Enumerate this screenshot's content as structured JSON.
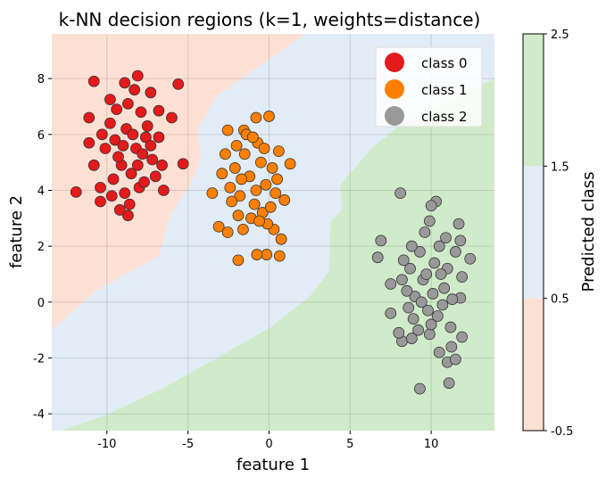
{
  "chart_data": {
    "type": "scatter",
    "title": "k-NN decision regions (k=1, weights=distance)",
    "xlabel": "feature 1",
    "ylabel": "feature 2",
    "xlim": [
      -13.4,
      13.9
    ],
    "ylim": [
      -4.6,
      9.6
    ],
    "xticks": [
      -10,
      -5,
      0,
      5,
      10
    ],
    "yticks": [
      -4,
      -2,
      0,
      2,
      4,
      6,
      8
    ],
    "grid": true,
    "legend_placement": "top-right",
    "regions": {
      "colors": [
        "#fde0d4",
        "#e2ecf7",
        "#d0ebc9"
      ],
      "boundary_0_1": [
        [
          2.27,
          9.6
        ],
        [
          -3.2,
          7.4
        ],
        [
          -4.4,
          6.2
        ],
        [
          -4.2,
          5.1
        ],
        [
          -4.9,
          4.2
        ],
        [
          -6.1,
          3.1
        ],
        [
          -6.8,
          1.65
        ],
        [
          -10.6,
          0.44
        ],
        [
          -13.4,
          -1.0
        ]
      ],
      "boundary_1_2": [
        [
          13.9,
          8.0
        ],
        [
          8.25,
          6.4
        ],
        [
          6.3,
          5.5
        ],
        [
          4.4,
          4.2
        ],
        [
          4.5,
          3.3
        ],
        [
          3.8,
          2.9
        ],
        [
          3.7,
          1.1
        ],
        [
          2.5,
          0.2
        ],
        [
          0.1,
          -0.9
        ],
        [
          -3.2,
          -2.0
        ],
        [
          -6.6,
          -3.1
        ],
        [
          -9.9,
          -4.0
        ],
        [
          -12.8,
          -4.6
        ]
      ]
    },
    "series": [
      {
        "name": "class 0",
        "color": "#e41a1c",
        "points": [
          [
            -11.9,
            3.94
          ],
          [
            -10.8,
            7.9
          ],
          [
            -8.1,
            8.1
          ],
          [
            -5.6,
            7.8
          ],
          [
            -5.3,
            4.95
          ],
          [
            -8.9,
            7.85
          ],
          [
            -11.1,
            6.6
          ],
          [
            -11.1,
            5.7
          ],
          [
            -10.8,
            4.9
          ],
          [
            -10.4,
            3.6
          ],
          [
            -8.7,
            3.1
          ],
          [
            -6.5,
            4.0
          ],
          [
            -6.0,
            6.6
          ],
          [
            -7.3,
            7.5
          ],
          [
            -9.8,
            7.25
          ],
          [
            -6.8,
            6.85
          ],
          [
            -9.5,
            5.8
          ],
          [
            -8.8,
            6.2
          ],
          [
            -8.2,
            5.5
          ],
          [
            -9.1,
            4.9
          ],
          [
            -7.6,
            5.9
          ],
          [
            -8.5,
            4.6
          ],
          [
            -9.8,
            6.4
          ],
          [
            -7.9,
            6.8
          ],
          [
            -8.7,
            7.1
          ],
          [
            -9.3,
            5.2
          ],
          [
            -7.2,
            5.1
          ],
          [
            -7.0,
            4.5
          ],
          [
            -10.1,
            5.5
          ],
          [
            -8.0,
            4.1
          ],
          [
            -8.9,
            3.9
          ],
          [
            -9.6,
            4.4
          ],
          [
            -7.5,
            6.3
          ],
          [
            -8.4,
            6.0
          ],
          [
            -9.0,
            5.6
          ],
          [
            -7.8,
            5.3
          ],
          [
            -8.6,
            3.5
          ],
          [
            -9.2,
            3.3
          ],
          [
            -10.3,
            6.0
          ],
          [
            -7.3,
            5.6
          ],
          [
            -6.8,
            5.9
          ],
          [
            -6.6,
            4.9
          ],
          [
            -8.3,
            7.6
          ],
          [
            -9.4,
            6.9
          ],
          [
            -10.4,
            4.1
          ],
          [
            -8.1,
            4.9
          ],
          [
            -7.7,
            4.3
          ],
          [
            -9.7,
            3.8
          ]
        ]
      },
      {
        "name": "class 1",
        "color": "#ff7f00",
        "points": [
          [
            -0.8,
            6.6
          ],
          [
            0.0,
            6.65
          ],
          [
            1.3,
            4.95
          ],
          [
            0.95,
            3.65
          ],
          [
            0.75,
            2.25
          ],
          [
            0.65,
            1.65
          ],
          [
            -0.15,
            1.7
          ],
          [
            -0.75,
            1.7
          ],
          [
            -1.9,
            1.5
          ],
          [
            -2.55,
            2.5
          ],
          [
            -3.1,
            2.7
          ],
          [
            -3.5,
            3.9
          ],
          [
            -2.55,
            6.15
          ],
          [
            -1.55,
            6.15
          ],
          [
            0.6,
            5.4
          ],
          [
            0.3,
            2.6
          ],
          [
            -1.2,
            4.5
          ],
          [
            -0.5,
            5.0
          ],
          [
            -1.8,
            3.8
          ],
          [
            -0.9,
            3.5
          ],
          [
            -0.2,
            4.2
          ],
          [
            -1.5,
            5.3
          ],
          [
            -2.1,
            4.8
          ],
          [
            -0.7,
            5.7
          ],
          [
            -1.1,
            3.0
          ],
          [
            -0.4,
            3.2
          ],
          [
            0.2,
            4.8
          ],
          [
            -2.4,
            4.1
          ],
          [
            -1.7,
            4.4
          ],
          [
            -0.3,
            5.5
          ],
          [
            -1.4,
            6.0
          ],
          [
            -2.7,
            5.3
          ],
          [
            -2.9,
            4.6
          ],
          [
            0.4,
            3.9
          ],
          [
            -0.8,
            4.0
          ],
          [
            -1.9,
            3.1
          ],
          [
            -2.3,
            3.6
          ],
          [
            0.1,
            3.4
          ],
          [
            -1.0,
            5.9
          ],
          [
            -0.1,
            2.8
          ],
          [
            -1.6,
            2.6
          ],
          [
            -0.6,
            2.9
          ],
          [
            0.5,
            4.4
          ],
          [
            -2.0,
            5.6
          ]
        ]
      },
      {
        "name": "class 2",
        "color": "#999999",
        "points": [
          [
            8.1,
            3.9
          ],
          [
            10.3,
            3.6
          ],
          [
            10.0,
            3.45
          ],
          [
            6.9,
            2.2
          ],
          [
            6.7,
            1.6
          ],
          [
            11.7,
            2.8
          ],
          [
            12.4,
            1.55
          ],
          [
            11.9,
            0.9
          ],
          [
            11.8,
            0.15
          ],
          [
            9.3,
            -3.1
          ],
          [
            11.1,
            -2.9
          ],
          [
            11.0,
            -2.15
          ],
          [
            11.5,
            -2.05
          ],
          [
            10.5,
            -1.8
          ],
          [
            11.25,
            -1.6
          ],
          [
            11.9,
            -1.25
          ],
          [
            8.2,
            -1.4
          ],
          [
            8.8,
            -1.3
          ],
          [
            7.5,
            0.65
          ],
          [
            7.5,
            -0.4
          ],
          [
            8.0,
            -1.1
          ],
          [
            9.9,
            -1.15
          ],
          [
            9.5,
            0.8
          ],
          [
            10.2,
            1.4
          ],
          [
            9.0,
            0.2
          ],
          [
            10.8,
            0.5
          ],
          [
            9.8,
            -0.3
          ],
          [
            8.7,
            1.2
          ],
          [
            10.5,
            2.0
          ],
          [
            9.3,
            1.8
          ],
          [
            11.0,
            1.2
          ],
          [
            8.5,
            0.4
          ],
          [
            10.0,
            -0.8
          ],
          [
            9.6,
            2.5
          ],
          [
            10.9,
            2.3
          ],
          [
            8.9,
            -0.6
          ],
          [
            11.3,
            0.1
          ],
          [
            9.2,
            -1.0
          ],
          [
            10.4,
            -0.5
          ],
          [
            11.5,
            1.8
          ],
          [
            8.3,
            1.5
          ],
          [
            9.9,
            2.9
          ],
          [
            10.7,
            -0.1
          ],
          [
            9.4,
            0.0
          ],
          [
            8.8,
            2.0
          ],
          [
            10.1,
            0.3
          ],
          [
            11.2,
            -0.9
          ],
          [
            8.6,
            -0.2
          ],
          [
            9.7,
            1.0
          ],
          [
            10.6,
            1.0
          ],
          [
            8.2,
            0.8
          ],
          [
            11.8,
            2.2
          ]
        ]
      }
    ],
    "colorbar": {
      "label": "Predicted class",
      "ticks": [
        "2.5",
        "1.5",
        "0.5",
        "-0.5"
      ],
      "range": [
        -0.5,
        2.5
      ]
    }
  }
}
